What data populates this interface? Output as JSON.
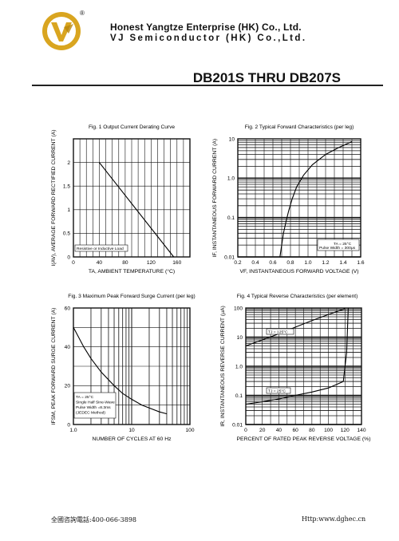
{
  "header": {
    "company_name": "Honest Yangtze Enterprise (HK) Co., Ltd.",
    "company_name_2": "VJ Semiconductor (HK) Co.,Ltd.",
    "logo_text": "V",
    "registered_mark": "®"
  },
  "document_title": "DB201S THRU DB207S",
  "footer": {
    "phone": "全國咨詢電話:400-066-3898",
    "website": "Http:www.dghec.cn"
  },
  "chart_data": [
    {
      "id": "fig1",
      "type": "line",
      "title": "Fig. 1  Output Current Derating Curve",
      "xlabel": "TA, AMBIENT TEMPERATURE (°C)",
      "ylabel": "I(AV), AVERAGE FORWARD RECTIFIED CURRENT (A)",
      "xlim": [
        0,
        180
      ],
      "ylim": [
        0,
        2.5
      ],
      "x_ticks": [
        "0",
        "40",
        "80",
        "120",
        "160"
      ],
      "y_ticks": [
        "0",
        "0.5",
        "1",
        "1.5",
        "2"
      ],
      "grid": true,
      "annotations": [
        "Resistive or Inductive Load"
      ],
      "series": [
        {
          "x": [
            40,
            155
          ],
          "y": [
            2.0,
            0.0
          ]
        }
      ]
    },
    {
      "id": "fig2",
      "type": "line",
      "title": "Fig. 2 Typical Forward Characteristics (per leg)",
      "xlabel": "VF, INSTANTANEOUS FORWARD VOLTAGE (V)",
      "ylabel": "IF, INSTANTANEOUS FORWARD CURRENT (A)",
      "xlim": [
        0.2,
        1.6
      ],
      "ylim": [
        0.01,
        10
      ],
      "y_scale": "log",
      "x_ticks": [
        "0.2",
        "0.4",
        "0.6",
        "0.8",
        "1.0",
        "1.2",
        "1.4",
        "1.6"
      ],
      "y_ticks": [
        "0.01",
        "0.1",
        "1.0",
        "10"
      ],
      "grid": true,
      "annotations": [
        "TA = 25°C",
        "Pulse Width = 300μs"
      ],
      "series": [
        {
          "x": [
            0.68,
            0.7,
            0.72,
            0.75,
            0.78,
            0.82,
            0.87,
            0.95,
            1.05,
            1.2,
            1.35,
            1.5
          ],
          "y": [
            0.01,
            0.02,
            0.04,
            0.08,
            0.15,
            0.3,
            0.6,
            1.2,
            2.2,
            4.0,
            6.0,
            8.5
          ]
        }
      ]
    },
    {
      "id": "fig3",
      "type": "line",
      "title": "Fig. 3  Maximum Peak Forward Surge Current (per leg)",
      "xlabel": "NUMBER OF CYCLES AT 60 Hz",
      "ylabel": "IFSM, PEAK FORWARD SURGE CURRENT (A)",
      "xlim": [
        1,
        100
      ],
      "ylim": [
        0,
        60
      ],
      "x_scale": "log",
      "x_ticks": [
        "1.0",
        "10",
        "100"
      ],
      "y_ticks": [
        "0",
        "20",
        "40",
        "60"
      ],
      "grid": true,
      "annotations": [
        "TA = 25°C",
        "Single Half Sine-Wave",
        "Pulse Width =8.3ms",
        "(JEDEC Method)"
      ],
      "series": [
        {
          "x": [
            1,
            1.5,
            2,
            3,
            5,
            7,
            10,
            15,
            20,
            30,
            40
          ],
          "y": [
            50,
            40,
            34,
            27,
            20,
            16,
            13,
            10,
            8.5,
            6.5,
            5.5
          ]
        }
      ]
    },
    {
      "id": "fig4",
      "type": "line",
      "title": "Fig. 4 Typical Reverse Characteristics (per element)",
      "xlabel": "PERCENT OF RATED PEAK REVERSE VOLTAGE (%)",
      "ylabel": "IR, INSTANTANEOUS REVERSE CURRENT (μA)",
      "xlim": [
        0,
        140
      ],
      "ylim": [
        0.01,
        100
      ],
      "y_scale": "log",
      "x_ticks": [
        "0",
        "20",
        "40",
        "60",
        "80",
        "100",
        "120",
        "140"
      ],
      "y_ticks": [
        "0.01",
        "0.1",
        "1.0",
        "10",
        "100"
      ],
      "grid": true,
      "series": [
        {
          "name": "TJ = 125°C",
          "x": [
            0,
            20,
            40,
            60,
            80,
            100,
            120
          ],
          "y": [
            5,
            8,
            13,
            22,
            37,
            60,
            95
          ]
        },
        {
          "name": "TJ = 25°C",
          "x": [
            0,
            20,
            40,
            60,
            80,
            100,
            118,
            122,
            124
          ],
          "y": [
            0.05,
            0.06,
            0.075,
            0.1,
            0.13,
            0.18,
            0.3,
            3,
            100
          ]
        }
      ]
    }
  ]
}
